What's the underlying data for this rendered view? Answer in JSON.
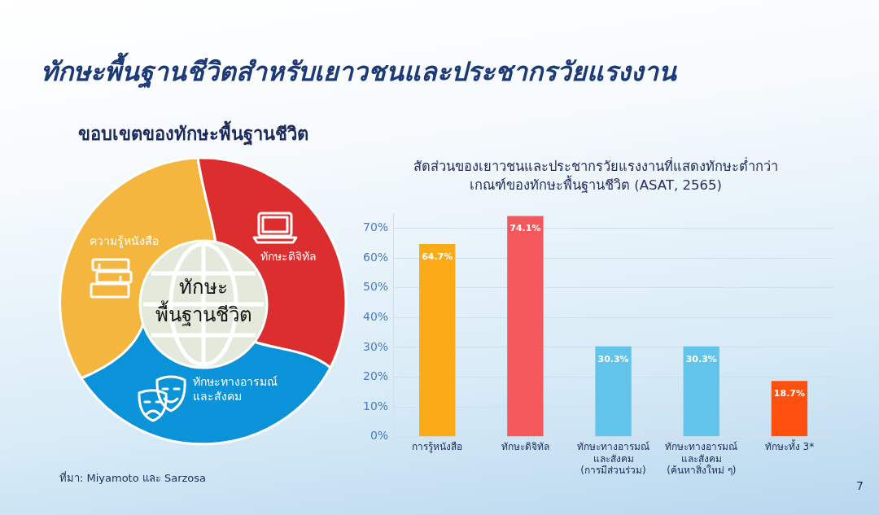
{
  "chart_data": [
    {
      "type": "other",
      "title": "ทักษะพื้นฐานชีวิตสำหรับเยาวชนและประชากรวัยแรงงาน",
      "subtitle": "ขอบเขตของทักษะพื้นฐานชีวิต",
      "annotations": [
        "ความรู้หนังสือ",
        "ทักษะดิจิทัล",
        "ทักษะทางอารมณ์\nและสังคม",
        "ทักษะ\nพื้นฐานชีวิต",
        "ที่มา: Miyamoto และ Sarzosa"
      ]
    },
    {
      "type": "bar",
      "title": "สัดส่วนของเยาวชนและประชากรวัยแรงงานที่แสดงทักษะต่ำกว่า\nเกณฑ์ของทักษะพื้นฐานชีวิต (ASAT, 2565)",
      "categories": [
        "การรู้หนังสือ",
        "ทักษะดิจิทัล",
        "ทักษะทางอารมณ์\nและสังคม\n(การมีส่วนร่วม)",
        "ทักษะทางอารมณ์\nและสังคม\n(ค้นหาสิ่งใหม่ ๆ)",
        "ทักษะทั้ง 3*"
      ],
      "values": [
        64.7,
        74.1,
        30.3,
        30.3,
        18.7
      ],
      "colors": [
        "#fbab18",
        "#f5585c",
        "#62c4ea",
        "#62c4ea",
        "#ff5010"
      ],
      "value_labels": [
        "64.7%",
        "74.1%",
        "30.3%",
        "30.3%",
        "18.7%"
      ],
      "ylim": [
        0,
        75
      ],
      "yticks": [
        {
          "value": 0,
          "label": "0%"
        },
        {
          "value": 10,
          "label": "10%"
        },
        {
          "value": 20,
          "label": "20%"
        },
        {
          "value": 30,
          "label": "30%"
        },
        {
          "value": 40,
          "label": "40%"
        },
        {
          "value": 50,
          "label": "50%"
        },
        {
          "value": 60,
          "label": "60%"
        },
        {
          "value": 70,
          "label": "70%"
        }
      ],
      "grid": "y",
      "annotations": [
        "7"
      ]
    }
  ]
}
